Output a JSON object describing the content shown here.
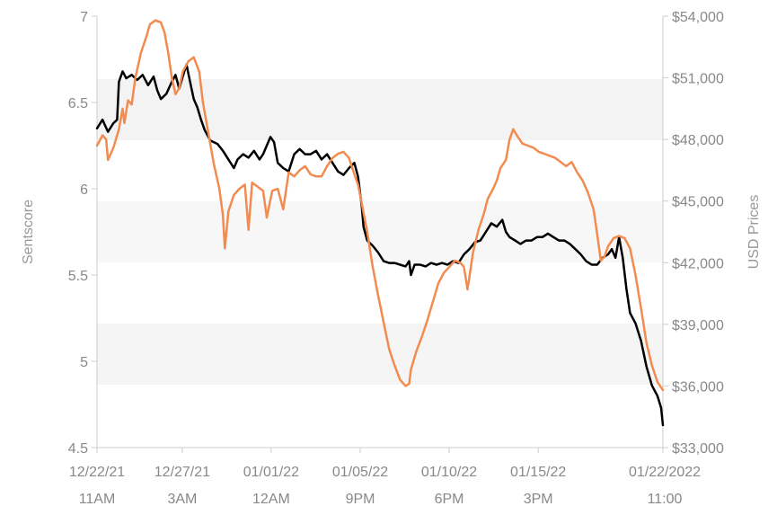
{
  "chart_data": {
    "type": "line",
    "title": "",
    "ylabel_left": "Sentscore",
    "ylabel_right": "USD Prices",
    "ylim_left": [
      4.5,
      7
    ],
    "ylim_right": [
      33000,
      54000
    ],
    "xlim": [
      "12/22/21 11AM",
      "01/22/2022 11:00"
    ],
    "left_ticks": [
      {
        "value": 4.5,
        "label": "4.5"
      },
      {
        "value": 5,
        "label": "5"
      },
      {
        "value": 5.5,
        "label": "5.5"
      },
      {
        "value": 6,
        "label": "6"
      },
      {
        "value": 6.5,
        "label": "6.5"
      },
      {
        "value": 7,
        "label": "7"
      }
    ],
    "right_ticks": [
      {
        "value": 33000,
        "label": "$33,000"
      },
      {
        "value": 36000,
        "label": "$36,000"
      },
      {
        "value": 39000,
        "label": "$39,000"
      },
      {
        "value": 42000,
        "label": "$42,000"
      },
      {
        "value": 45000,
        "label": "$45,000"
      },
      {
        "value": 48000,
        "label": "$48,000"
      },
      {
        "value": 51000,
        "label": "$51,000"
      },
      {
        "value": 54000,
        "label": "$54,000"
      }
    ],
    "x_ticks": [
      {
        "day": 0,
        "line1": "12/22/21",
        "line2": "11AM"
      },
      {
        "day": 4.67,
        "line1": "12/27/21",
        "line2": "3AM"
      },
      {
        "day": 9.54,
        "line1": "01/01/22",
        "line2": "12AM"
      },
      {
        "day": 14.42,
        "line1": "01/05/22",
        "line2": "9PM"
      },
      {
        "day": 19.29,
        "line1": "01/10/22",
        "line2": "6PM"
      },
      {
        "day": 24.17,
        "line1": "01/15/22",
        "line2": "3PM"
      },
      {
        "day": 31.0,
        "line1": "01/22/2022",
        "line2": "11:00"
      }
    ],
    "series": [
      {
        "axis": "left",
        "color": "#000000",
        "points": [
          [
            0,
            6.35
          ],
          [
            0.3,
            6.4
          ],
          [
            0.6,
            6.33
          ],
          [
            0.9,
            6.38
          ],
          [
            1.1,
            6.4
          ],
          [
            1.2,
            6.62
          ],
          [
            1.4,
            6.68
          ],
          [
            1.6,
            6.64
          ],
          [
            1.9,
            6.66
          ],
          [
            2.2,
            6.63
          ],
          [
            2.5,
            6.66
          ],
          [
            2.8,
            6.6
          ],
          [
            3.1,
            6.65
          ],
          [
            3.3,
            6.57
          ],
          [
            3.5,
            6.52
          ],
          [
            3.8,
            6.55
          ],
          [
            4.1,
            6.62
          ],
          [
            4.3,
            6.66
          ],
          [
            4.5,
            6.58
          ],
          [
            4.7,
            6.65
          ],
          [
            4.9,
            6.72
          ],
          [
            5.1,
            6.62
          ],
          [
            5.3,
            6.52
          ],
          [
            5.5,
            6.47
          ],
          [
            5.7,
            6.4
          ],
          [
            5.9,
            6.34
          ],
          [
            6.2,
            6.28
          ],
          [
            6.4,
            6.27
          ],
          [
            6.6,
            6.26
          ],
          [
            6.9,
            6.22
          ],
          [
            7.2,
            6.17
          ],
          [
            7.5,
            6.12
          ],
          [
            7.7,
            6.17
          ],
          [
            8.0,
            6.2
          ],
          [
            8.3,
            6.18
          ],
          [
            8.6,
            6.22
          ],
          [
            8.9,
            6.17
          ],
          [
            9.1,
            6.2
          ],
          [
            9.3,
            6.25
          ],
          [
            9.5,
            6.3
          ],
          [
            9.7,
            6.27
          ],
          [
            9.9,
            6.15
          ],
          [
            10.2,
            6.12
          ],
          [
            10.5,
            6.1
          ],
          [
            10.8,
            6.2
          ],
          [
            11.1,
            6.23
          ],
          [
            11.4,
            6.2
          ],
          [
            11.7,
            6.2
          ],
          [
            12.0,
            6.22
          ],
          [
            12.3,
            6.17
          ],
          [
            12.6,
            6.2
          ],
          [
            12.9,
            6.15
          ],
          [
            13.2,
            6.1
          ],
          [
            13.5,
            6.08
          ],
          [
            13.8,
            6.12
          ],
          [
            14.1,
            6.15
          ],
          [
            14.3,
            6.07
          ],
          [
            14.5,
            5.9
          ],
          [
            14.6,
            5.78
          ],
          [
            14.8,
            5.7
          ],
          [
            15.1,
            5.67
          ],
          [
            15.4,
            5.63
          ],
          [
            15.7,
            5.58
          ],
          [
            16.0,
            5.57
          ],
          [
            16.3,
            5.57
          ],
          [
            16.6,
            5.56
          ],
          [
            16.9,
            5.55
          ],
          [
            17.1,
            5.58
          ],
          [
            17.2,
            5.5
          ],
          [
            17.4,
            5.56
          ],
          [
            17.7,
            5.56
          ],
          [
            18.0,
            5.55
          ],
          [
            18.3,
            5.57
          ],
          [
            18.6,
            5.56
          ],
          [
            18.9,
            5.57
          ],
          [
            19.2,
            5.56
          ],
          [
            19.5,
            5.58
          ],
          [
            19.8,
            5.57
          ],
          [
            20.1,
            5.62
          ],
          [
            20.4,
            5.65
          ],
          [
            20.7,
            5.69
          ],
          [
            21.0,
            5.7
          ],
          [
            21.3,
            5.75
          ],
          [
            21.6,
            5.8
          ],
          [
            21.9,
            5.78
          ],
          [
            22.2,
            5.82
          ],
          [
            22.4,
            5.75
          ],
          [
            22.6,
            5.72
          ],
          [
            22.9,
            5.7
          ],
          [
            23.2,
            5.68
          ],
          [
            23.5,
            5.7
          ],
          [
            23.8,
            5.7
          ],
          [
            24.1,
            5.72
          ],
          [
            24.4,
            5.72
          ],
          [
            24.7,
            5.74
          ],
          [
            25.0,
            5.72
          ],
          [
            25.3,
            5.7
          ],
          [
            25.6,
            5.7
          ],
          [
            25.9,
            5.68
          ],
          [
            26.2,
            5.65
          ],
          [
            26.5,
            5.62
          ],
          [
            26.8,
            5.58
          ],
          [
            27.1,
            5.56
          ],
          [
            27.4,
            5.56
          ],
          [
            27.7,
            5.6
          ],
          [
            28.0,
            5.62
          ],
          [
            28.2,
            5.65
          ],
          [
            28.4,
            5.6
          ],
          [
            28.6,
            5.72
          ],
          [
            28.8,
            5.6
          ],
          [
            29.0,
            5.42
          ],
          [
            29.2,
            5.28
          ],
          [
            29.5,
            5.22
          ],
          [
            29.8,
            5.12
          ],
          [
            30.1,
            4.97
          ],
          [
            30.4,
            4.86
          ],
          [
            30.7,
            4.8
          ],
          [
            30.9,
            4.73
          ],
          [
            31.0,
            4.63
          ]
        ]
      },
      {
        "axis": "right",
        "color": "#f28b50",
        "points": [
          [
            0,
            47700
          ],
          [
            0.3,
            48200
          ],
          [
            0.5,
            48000
          ],
          [
            0.6,
            47000
          ],
          [
            0.9,
            47600
          ],
          [
            1.2,
            48500
          ],
          [
            1.4,
            49500
          ],
          [
            1.5,
            48800
          ],
          [
            1.7,
            49900
          ],
          [
            1.9,
            49700
          ],
          [
            2.1,
            51000
          ],
          [
            2.4,
            52200
          ],
          [
            2.7,
            53000
          ],
          [
            2.9,
            53600
          ],
          [
            3.2,
            53800
          ],
          [
            3.5,
            53700
          ],
          [
            3.7,
            53200
          ],
          [
            3.9,
            52200
          ],
          [
            4.1,
            51000
          ],
          [
            4.3,
            50200
          ],
          [
            4.5,
            50500
          ],
          [
            4.7,
            51300
          ],
          [
            5.0,
            51800
          ],
          [
            5.3,
            52000
          ],
          [
            5.6,
            51300
          ],
          [
            5.8,
            49800
          ],
          [
            6.1,
            48300
          ],
          [
            6.4,
            46800
          ],
          [
            6.7,
            45600
          ],
          [
            6.9,
            44300
          ],
          [
            7.0,
            42700
          ],
          [
            7.2,
            44500
          ],
          [
            7.5,
            45300
          ],
          [
            7.8,
            45600
          ],
          [
            8.1,
            45800
          ],
          [
            8.3,
            43600
          ],
          [
            8.5,
            45900
          ],
          [
            8.8,
            45700
          ],
          [
            9.1,
            45500
          ],
          [
            9.3,
            44200
          ],
          [
            9.6,
            45500
          ],
          [
            9.9,
            45600
          ],
          [
            10.2,
            44600
          ],
          [
            10.5,
            46400
          ],
          [
            10.8,
            46200
          ],
          [
            11.1,
            46500
          ],
          [
            11.4,
            46700
          ],
          [
            11.7,
            46300
          ],
          [
            12.0,
            46200
          ],
          [
            12.3,
            46200
          ],
          [
            12.6,
            46700
          ],
          [
            12.9,
            47100
          ],
          [
            13.2,
            47300
          ],
          [
            13.5,
            47400
          ],
          [
            13.8,
            47100
          ],
          [
            14.1,
            46300
          ],
          [
            14.3,
            45800
          ],
          [
            14.5,
            44900
          ],
          [
            14.8,
            43500
          ],
          [
            15.1,
            41800
          ],
          [
            15.4,
            40400
          ],
          [
            15.7,
            39100
          ],
          [
            16.0,
            37800
          ],
          [
            16.3,
            37000
          ],
          [
            16.6,
            36300
          ],
          [
            16.9,
            36000
          ],
          [
            17.1,
            36100
          ],
          [
            17.2,
            36800
          ],
          [
            17.5,
            37700
          ],
          [
            17.8,
            38400
          ],
          [
            18.1,
            39200
          ],
          [
            18.4,
            40100
          ],
          [
            18.7,
            41000
          ],
          [
            19.0,
            41500
          ],
          [
            19.3,
            41800
          ],
          [
            19.6,
            42100
          ],
          [
            19.9,
            42000
          ],
          [
            20.1,
            41800
          ],
          [
            20.3,
            40700
          ],
          [
            20.6,
            42500
          ],
          [
            20.9,
            43600
          ],
          [
            21.2,
            44400
          ],
          [
            21.4,
            45100
          ],
          [
            21.7,
            45600
          ],
          [
            21.9,
            46000
          ],
          [
            22.1,
            46600
          ],
          [
            22.4,
            47000
          ],
          [
            22.6,
            48000
          ],
          [
            22.8,
            48500
          ],
          [
            23.0,
            48200
          ],
          [
            23.3,
            47800
          ],
          [
            23.6,
            47700
          ],
          [
            23.9,
            47600
          ],
          [
            24.2,
            47400
          ],
          [
            24.5,
            47300
          ],
          [
            24.8,
            47200
          ],
          [
            25.1,
            47100
          ],
          [
            25.4,
            46900
          ],
          [
            25.7,
            46700
          ],
          [
            26.0,
            46900
          ],
          [
            26.3,
            46400
          ],
          [
            26.6,
            46000
          ],
          [
            26.9,
            45400
          ],
          [
            27.2,
            44600
          ],
          [
            27.4,
            43400
          ],
          [
            27.6,
            42100
          ],
          [
            27.8,
            42300
          ],
          [
            28.0,
            42800
          ],
          [
            28.3,
            43200
          ],
          [
            28.6,
            43300
          ],
          [
            28.9,
            43200
          ],
          [
            29.2,
            42700
          ],
          [
            29.5,
            41400
          ],
          [
            29.8,
            39800
          ],
          [
            30.1,
            38100
          ],
          [
            30.4,
            37000
          ],
          [
            30.7,
            36200
          ],
          [
            31.0,
            35800
          ]
        ]
      }
    ]
  }
}
